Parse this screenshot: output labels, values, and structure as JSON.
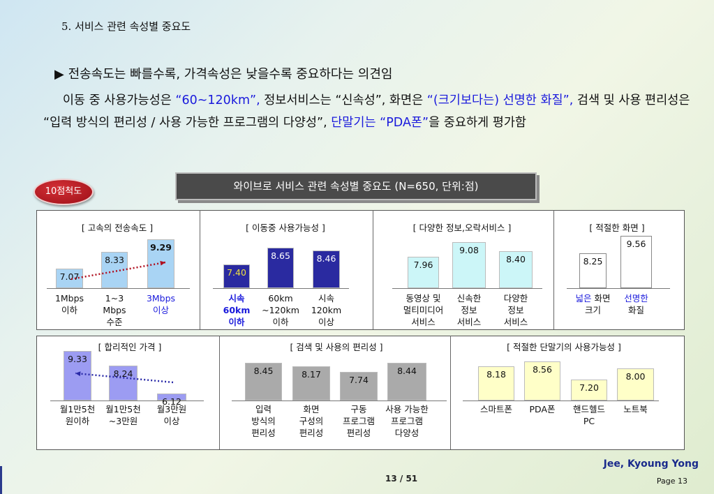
{
  "slide": {
    "heading": "5. 서비스 관련 속성별 중요도",
    "bullet": "▶ 전송속도는 빠를수록, 가격속성은 낮을수록 중요하다는 의견임",
    "para": [
      {
        "t": "이동 중 사용가능성은 ",
        "blue": false
      },
      {
        "t": "“60~120km”,",
        "blue": true
      },
      {
        "t": " 정보서비스는 “신속성”, 화면은 ",
        "blue": false
      },
      {
        "t": "“(크기보다는) 선명한 화질”,",
        "blue": true
      },
      {
        "t": " 검색 및 사용 편리성은 “입력 방식의 편리성 / 사용 가능한 프로그램의 다양성”, ",
        "blue": false
      },
      {
        "t": "단말기는 “PDA폰”",
        "blue": true
      },
      {
        "t": "을 중요하게 평가함",
        "blue": false
      }
    ],
    "badge": "10점척도",
    "chart_title": "와이브로 서비스 관련 속성별 중요도 (N=650, 단위:점)",
    "author": "Jee, Kyoung Yong",
    "page_ref": "Page 13",
    "page_num": "13   / 51"
  },
  "chart_data": [
    {
      "type": "bar",
      "title": "[ 고속의 전송속도 ]",
      "categories": [
        "1Mbps\n이하",
        "1~3\nMbps\n수준",
        "3Mbps\n이상"
      ],
      "values": [
        7.07,
        8.33,
        9.29
      ],
      "colors": [
        "#a9d4f4",
        "#a9d4f4",
        "#a9d4f4"
      ],
      "label_colors": [
        "#111",
        "#111",
        "#1a1adc"
      ],
      "value_colors": [
        "#111",
        "#111",
        "#111"
      ],
      "trend": "up",
      "bold_max": true
    },
    {
      "type": "bar",
      "title": "[ 이동중 사용가능성 ]",
      "categories": [
        "시속\n60km\n이하",
        "60km\n~120km\n이하",
        "시속\n120km\n이상"
      ],
      "values": [
        7.4,
        8.65,
        8.46
      ],
      "colors": [
        "#2a2aa0",
        "#2a2aa0",
        "#2a2aa0"
      ],
      "label_colors": [
        "#1a1adc",
        "#111",
        "#111"
      ],
      "value_colors": [
        "#f0e040",
        "#ffffff",
        "#ffffff"
      ],
      "bold_label": 0
    },
    {
      "type": "bar",
      "title": "[ 다양한 정보,오락서비스 ]",
      "categories": [
        "동영상 및\n멀티미디어\n서비스",
        "신속한\n정보\n서비스",
        "다양한\n정보\n서비스"
      ],
      "values": [
        7.96,
        9.08,
        8.4
      ],
      "colors": [
        "#ccf6f8",
        "#ccf6f8",
        "#ccf6f8"
      ],
      "label_colors": [
        "#111",
        "#111",
        "#111"
      ],
      "value_colors": [
        "#111",
        "#111",
        "#111"
      ]
    },
    {
      "type": "bar",
      "title": "[ 적절한 화면 ]",
      "categories": [
        "넓은 화면\n크기",
        "선명한\n화질"
      ],
      "label_parts": [
        [
          [
            "넓은",
            "#1a1adc"
          ],
          [
            " 화면\n크기",
            "#111"
          ]
        ],
        [
          [
            "선명한",
            "#1a1adc"
          ],
          [
            "\n화질",
            "#111"
          ]
        ]
      ],
      "values": [
        8.25,
        9.56
      ],
      "colors": [
        "#ffffff",
        "#ffffff"
      ],
      "label_colors": [
        "#111",
        "#111"
      ],
      "value_colors": [
        "#111",
        "#111"
      ]
    },
    {
      "type": "bar",
      "title": "[ 합리적인 가격 ]",
      "categories": [
        "월1만5천\n원이하",
        "월1만5천\n~3만원",
        "월3만원\n이상"
      ],
      "values": [
        9.33,
        8.24,
        6.12
      ],
      "colors": [
        "#9c9cf2",
        "#9c9cf2",
        "#9c9cf2"
      ],
      "label_colors": [
        "#111",
        "#111",
        "#111"
      ],
      "value_colors": [
        "#111",
        "#111",
        "#111"
      ],
      "trend": "down"
    },
    {
      "type": "bar",
      "title": "[ 검색 및 사용의 편리성 ]",
      "categories": [
        "입력\n방식의\n편리성",
        "화면\n구성의\n편리성",
        "구동\n프로그램\n편리성",
        "사용 가능한\n프로그램\n다양성"
      ],
      "values": [
        8.45,
        8.17,
        7.74,
        8.44
      ],
      "colors": [
        "#aaaaaa",
        "#aaaaaa",
        "#aaaaaa",
        "#aaaaaa"
      ],
      "label_colors": [
        "#111",
        "#111",
        "#111",
        "#111"
      ],
      "value_colors": [
        "#111",
        "#111",
        "#111",
        "#111"
      ]
    },
    {
      "type": "bar",
      "title": "[ 적절한 단말기의 사용가능성 ]",
      "categories": [
        "스마트폰",
        "PDA폰",
        "핸드헬드\nPC",
        "노트북"
      ],
      "values": [
        8.18,
        8.56,
        7.2,
        8.0
      ],
      "colors": [
        "#ffffc8",
        "#ffffc8",
        "#ffffc8",
        "#ffffc8"
      ],
      "label_colors": [
        "#111",
        "#111",
        "#111",
        "#111"
      ],
      "value_colors": [
        "#111",
        "#111",
        "#111",
        "#111"
      ]
    }
  ]
}
